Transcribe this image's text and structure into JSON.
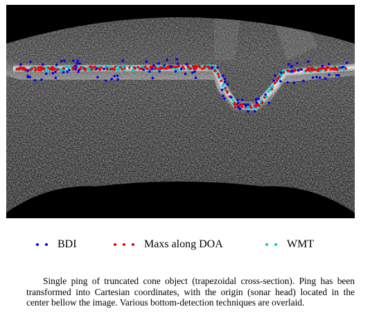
{
  "legend": [
    {
      "label": "BDI",
      "color": "#0000ee"
    },
    {
      "label": "Maxs along DOA",
      "color": "#ee0000"
    },
    {
      "label": "WMT",
      "color": "#00c8c8"
    }
  ],
  "caption": "Single ping of truncated cone object (trapezoidal cross-section). Ping has been transformed into Cartesian coordinates, with the origin (sonar head) located in the center bellow the image. Various bottom-detection techniques are overlaid.",
  "image": {
    "description_type": "sonar-ping-cartesian",
    "background": "#000000"
  }
}
